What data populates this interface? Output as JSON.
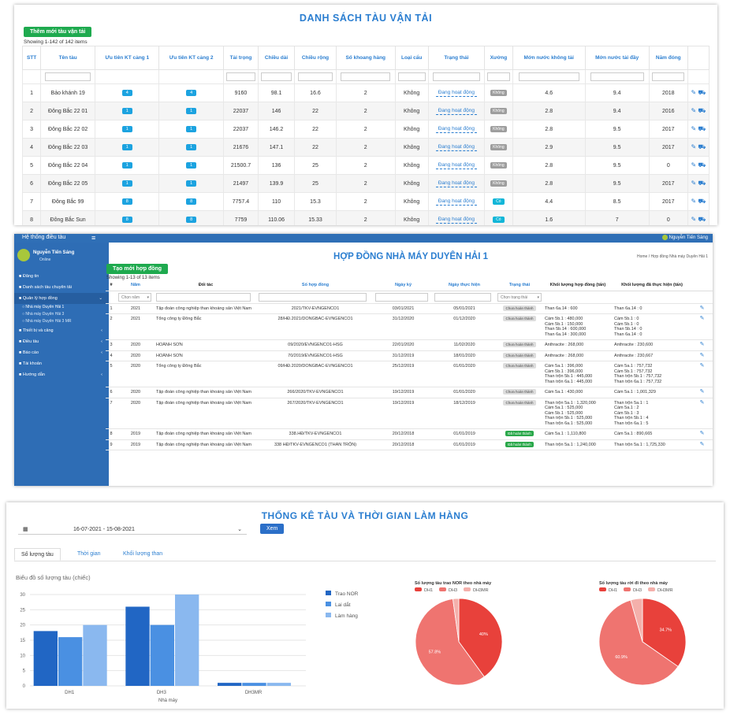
{
  "panel1": {
    "title": "DANH SÁCH TÀU VẬN TẢI",
    "add_button": "Thêm mới tàu vận tải",
    "showing": "Showing 1-142 of 142 items",
    "headers": [
      "STT",
      "Tên tàu",
      "Ưu tiên KT cảng 1",
      "Ưu tiên KT cảng 2",
      "Tải trọng",
      "Chiều dài",
      "Chiều rộng",
      "Số khoang hàng",
      "Loại cẩu",
      "Trạng thái",
      "Xưởng",
      "Mớn nước không tải",
      "Mớn nước tải đầy",
      "Năm đóng"
    ],
    "rows": [
      {
        "stt": "1",
        "name": "Bảo khánh 19",
        "p1": "4",
        "p2": "4",
        "load": "9160",
        "length": "98.1",
        "width": "16.6",
        "holds": "2",
        "crane": "Không",
        "status": "Đang hoạt động",
        "dock": "Không",
        "draft_empty": "4.6",
        "draft_full": "9.4",
        "year": "2018"
      },
      {
        "stt": "2",
        "name": "Đông Bắc 22 01",
        "p1": "1",
        "p2": "1",
        "load": "22037",
        "length": "146",
        "width": "22",
        "holds": "2",
        "crane": "Không",
        "status": "Đang hoạt động",
        "dock": "Không",
        "draft_empty": "2.8",
        "draft_full": "9.4",
        "year": "2016"
      },
      {
        "stt": "3",
        "name": "Đông Bắc 22 02",
        "p1": "1",
        "p2": "1",
        "load": "22037",
        "length": "146.2",
        "width": "22",
        "holds": "2",
        "crane": "Không",
        "status": "Đang hoạt động",
        "dock": "Không",
        "draft_empty": "2.8",
        "draft_full": "9.5",
        "year": "2017"
      },
      {
        "stt": "4",
        "name": "Đông Bắc 22 03",
        "p1": "1",
        "p2": "1",
        "load": "21676",
        "length": "147.1",
        "width": "22",
        "holds": "2",
        "crane": "Không",
        "status": "Đang hoạt động",
        "dock": "Không",
        "draft_empty": "2.9",
        "draft_full": "9.5",
        "year": "2017"
      },
      {
        "stt": "5",
        "name": "Đông Bắc 22 04",
        "p1": "1",
        "p2": "1",
        "load": "21500.7",
        "length": "136",
        "width": "25",
        "holds": "2",
        "crane": "Không",
        "status": "Đang hoạt động",
        "dock": "Không",
        "draft_empty": "2.8",
        "draft_full": "9.5",
        "year": "0"
      },
      {
        "stt": "6",
        "name": "Đông Bắc 22 05",
        "p1": "1",
        "p2": "1",
        "load": "21497",
        "length": "139.9",
        "width": "25",
        "holds": "2",
        "crane": "Không",
        "status": "Đang hoạt động",
        "dock": "Không",
        "draft_empty": "2.8",
        "draft_full": "9.5",
        "year": "2017"
      },
      {
        "stt": "7",
        "name": "Đông Bắc 99",
        "p1": "8",
        "p2": "8",
        "load": "7757.4",
        "length": "110",
        "width": "15.3",
        "holds": "2",
        "crane": "Không",
        "status": "Đang hoạt động",
        "dock": "Có",
        "draft_empty": "4.4",
        "draft_full": "8.5",
        "year": "2017"
      },
      {
        "stt": "8",
        "name": "Đông Bắc Sun",
        "p1": "8",
        "p2": "8",
        "load": "7759",
        "length": "110.06",
        "width": "15.33",
        "holds": "2",
        "crane": "Không",
        "status": "Đang hoạt động",
        "dock": "Có",
        "draft_empty": "1.6",
        "draft_full": "7",
        "year": "0"
      }
    ]
  },
  "panel2": {
    "topbar_title": "Hệ thống điều tàu",
    "topbar_menu": "≡",
    "topbar_user": "Nguyễn Tiến Sáng",
    "user_name": "Nguyễn Tiến Sáng",
    "user_status": "Online",
    "menu": [
      {
        "label": "Đăng tin",
        "chev": ""
      },
      {
        "label": "Danh sách tàu chuyên tải",
        "chev": ""
      },
      {
        "label": "Quản lý hợp đồng",
        "chev": "⌄"
      }
    ],
    "submenu": [
      "Nhà máy Duyên Hải 1",
      "Nhà máy Duyên Hải 3",
      "Nhà máy Duyên Hải 3 MR"
    ],
    "menu2": [
      {
        "label": "Thiết bị và cảng",
        "chev": "‹"
      },
      {
        "label": "Điều tàu",
        "chev": "‹"
      },
      {
        "label": "Báo cáo",
        "chev": "‹"
      },
      {
        "label": "Tài khoản",
        "chev": ""
      },
      {
        "label": "Hướng dẫn",
        "chev": "‹"
      }
    ],
    "title": "HỢP ĐỒNG NHÀ MÁY DUYÊN HẢI 1",
    "breadcrumb": "Home  /  Hợp đồng Nhà máy Duyên Hải 1",
    "new_button": "Tạo mới hợp đồng",
    "showing": "Showing 1-13 of 13 items",
    "headers": [
      "#",
      "Năm",
      "Đối tác",
      "Số hợp đồng",
      "Ngày ký",
      "Ngày thực hiện",
      "Trạng thái",
      "Khối lượng hợp đồng (tấn)",
      "Khối lượng đã thực hiện (tấn)"
    ],
    "filter_year": "Chọn năm",
    "filter_status": "Chọn trạng thái",
    "rows": [
      {
        "no": "1",
        "year": "2021",
        "partner": "Tập đoàn công nghiệp than khoáng sản Việt Nam",
        "contract": "2021/TKV-EVNGENCO1",
        "signed": "03/01/2021",
        "exec": "05/01/2021",
        "status": "Chưa hoàn thành",
        "done": false,
        "volume": "Than 6a.14 : 600",
        "executed": "Than 6a.14 : 0"
      },
      {
        "no": "2",
        "year": "2021",
        "partner": "Tổng công ty Đông Bắc",
        "contract": "28/HĐ.2021/DONGBAC-EVNGENCO1",
        "signed": "31/12/2020",
        "exec": "01/12/2020",
        "status": "Chưa hoàn thành",
        "done": false,
        "volume": "Cám 5b.1 : 480,000\nCám 5b.1 : 150,000\nThan 5b.14 : 600,000\nThan 6a.14 : 300,000",
        "executed": "Cám 5b.1 : 0\nCám 5b.1 : 0\nThan 5b.14 : 0\nThan 6a.14 : 0"
      },
      {
        "no": "3",
        "year": "2020",
        "partner": "HOÀNH SƠN",
        "contract": "09/2020/EVNGENCO1-HSG",
        "signed": "22/01/2020",
        "exec": "11/02/2020",
        "status": "Chưa hoàn thành",
        "done": false,
        "volume": "Anthracite : 268,000",
        "executed": "Anthracite : 230,600"
      },
      {
        "no": "4",
        "year": "2020",
        "partner": "HOÀNH SƠN",
        "contract": "70/2019/EVNGENCO1-HSG",
        "signed": "31/12/2019",
        "exec": "18/01/2020",
        "status": "Chưa hoàn thành",
        "done": false,
        "volume": "Anthracite : 268,000",
        "executed": "Anthracite : 230,667"
      },
      {
        "no": "5",
        "year": "2020",
        "partner": "Tổng công ty Đông Bắc",
        "contract": "09/HĐ.2020/DONGBAC-EVNGENCO1",
        "signed": "25/12/2019",
        "exec": "01/01/2020",
        "status": "Chưa hoàn thành",
        "done": false,
        "volume": "Cám 5a.1 : 396,000\nCám 5b.1 : 396,000\nThan trộn 5b.1 : 445,000\nThan trộn 6a.1 : 445,000",
        "executed": "Cám 5a.1 : 757,732\nCám 5b.1 : 757,732\nThan trộn 5b.1 : 757,732\nThan trộn 6a.1 : 757,732"
      },
      {
        "no": "6",
        "year": "2020",
        "partner": "Tập đoàn công nghiệp than khoáng sản Việt Nam",
        "contract": "266/2020/TKV-EVNGENCO1",
        "signed": "19/12/2019",
        "exec": "01/01/2020",
        "status": "Chưa hoàn thành",
        "done": false,
        "volume": "Cám 5a.1 : 430,000",
        "executed": "Cám 5a.1 : 1,001,329"
      },
      {
        "no": "7",
        "year": "2020",
        "partner": "Tập đoàn công nghiệp than khoáng sản Việt Nam",
        "contract": "267/2020/TKV-EVNGENCO1",
        "signed": "19/12/2019",
        "exec": "18/12/2019",
        "status": "Chưa hoàn thành",
        "done": false,
        "volume": "Than trộn 5a.1 : 1,320,000\nCám 5a.1 : 525,000\nCám 5b.1 : 525,000\nThan trộn 5b.1 : 525,000\nThan trộn 6a.1 : 525,000",
        "executed": "Than trộn 5a.1 : 1\nCám 5a.1 : 2\nCám 5b.1 : 3\nThan trộn 5b.1 : 4\nThan trộn 6a.1 : 5"
      },
      {
        "no": "8",
        "year": "2019",
        "partner": "Tập đoàn công nghiệp than khoáng sản Việt Nam",
        "contract": "338.HĐ/TKV-EVNGENCO1",
        "signed": "20/12/2018",
        "exec": "01/01/2019",
        "status": "Đã hoàn thành",
        "done": true,
        "volume": "Cám 5a.1 : 1,110,800",
        "executed": "Cám 5a.1 : 890,665"
      },
      {
        "no": "9",
        "year": "2019",
        "partner": "Tập đoàn công nghiệp than khoáng sản Việt Nam",
        "contract": "338 HĐ/TKV-EVNGENCO1 (THAN TRỘN)",
        "signed": "20/12/2018",
        "exec": "01/01/2019",
        "status": "Đã hoàn thành",
        "done": true,
        "volume": "Than trộn 5a.1 : 1,240,000",
        "executed": "Than trộn 5a.1 : 1,725,330"
      }
    ]
  },
  "panel3": {
    "title": "THỐNG KÊ TÀU VÀ THỜI GIAN LÀM HÀNG",
    "date_range": "16-07-2021 - 15-08-2021",
    "view_button": "Xem",
    "tabs": [
      "Số lượng tàu",
      "Thời gian",
      "Khối lượng than"
    ],
    "chart_subtitle": "Biểu đồ số lượng tàu (chiếc)",
    "pie1_title": "Số lượng tàu trao NOR theo nhà máy",
    "pie2_title": "Số lượng tàu rời đi theo nhà máy",
    "pie_legend": [
      "DH1",
      "DH3",
      "DH3MR"
    ]
  },
  "chart_data": [
    {
      "type": "bar",
      "title": "Biểu đồ số lượng tàu (chiếc)",
      "xlabel": "Nhà máy",
      "ylabel": "",
      "categories": [
        "DH1",
        "DH3",
        "DH3MR"
      ],
      "ylim": [
        0,
        30
      ],
      "yticks": [
        "0",
        "5",
        "10",
        "15",
        "20",
        "25",
        "30"
      ],
      "series": [
        {
          "name": "Trao NOR",
          "color": "#2166c4",
          "values": [
            18,
            26,
            1
          ]
        },
        {
          "name": "Lai dắt",
          "color": "#4a90e2",
          "values": [
            16,
            20,
            1
          ]
        },
        {
          "name": "Làm hàng",
          "color": "#8ab8ef",
          "values": [
            20,
            30,
            1
          ]
        }
      ]
    },
    {
      "type": "pie",
      "title": "Số lượng tàu trao NOR theo nhà máy",
      "categories": [
        "DH1",
        "DH3",
        "DH3MR"
      ],
      "values": [
        40,
        57.8,
        2.2
      ],
      "labels": [
        "40%",
        "57.8%",
        ""
      ],
      "colors": [
        "#e8413b",
        "#ef7470",
        "#f4b0ab"
      ]
    },
    {
      "type": "pie",
      "title": "Số lượng tàu rời đi theo nhà máy",
      "categories": [
        "DH1",
        "DH3",
        "DH3MR"
      ],
      "values": [
        34.7,
        60.9,
        4.4
      ],
      "labels": [
        "34.7%",
        "60.9%",
        ""
      ],
      "colors": [
        "#e8413b",
        "#ef7470",
        "#f4b0ab"
      ]
    }
  ]
}
